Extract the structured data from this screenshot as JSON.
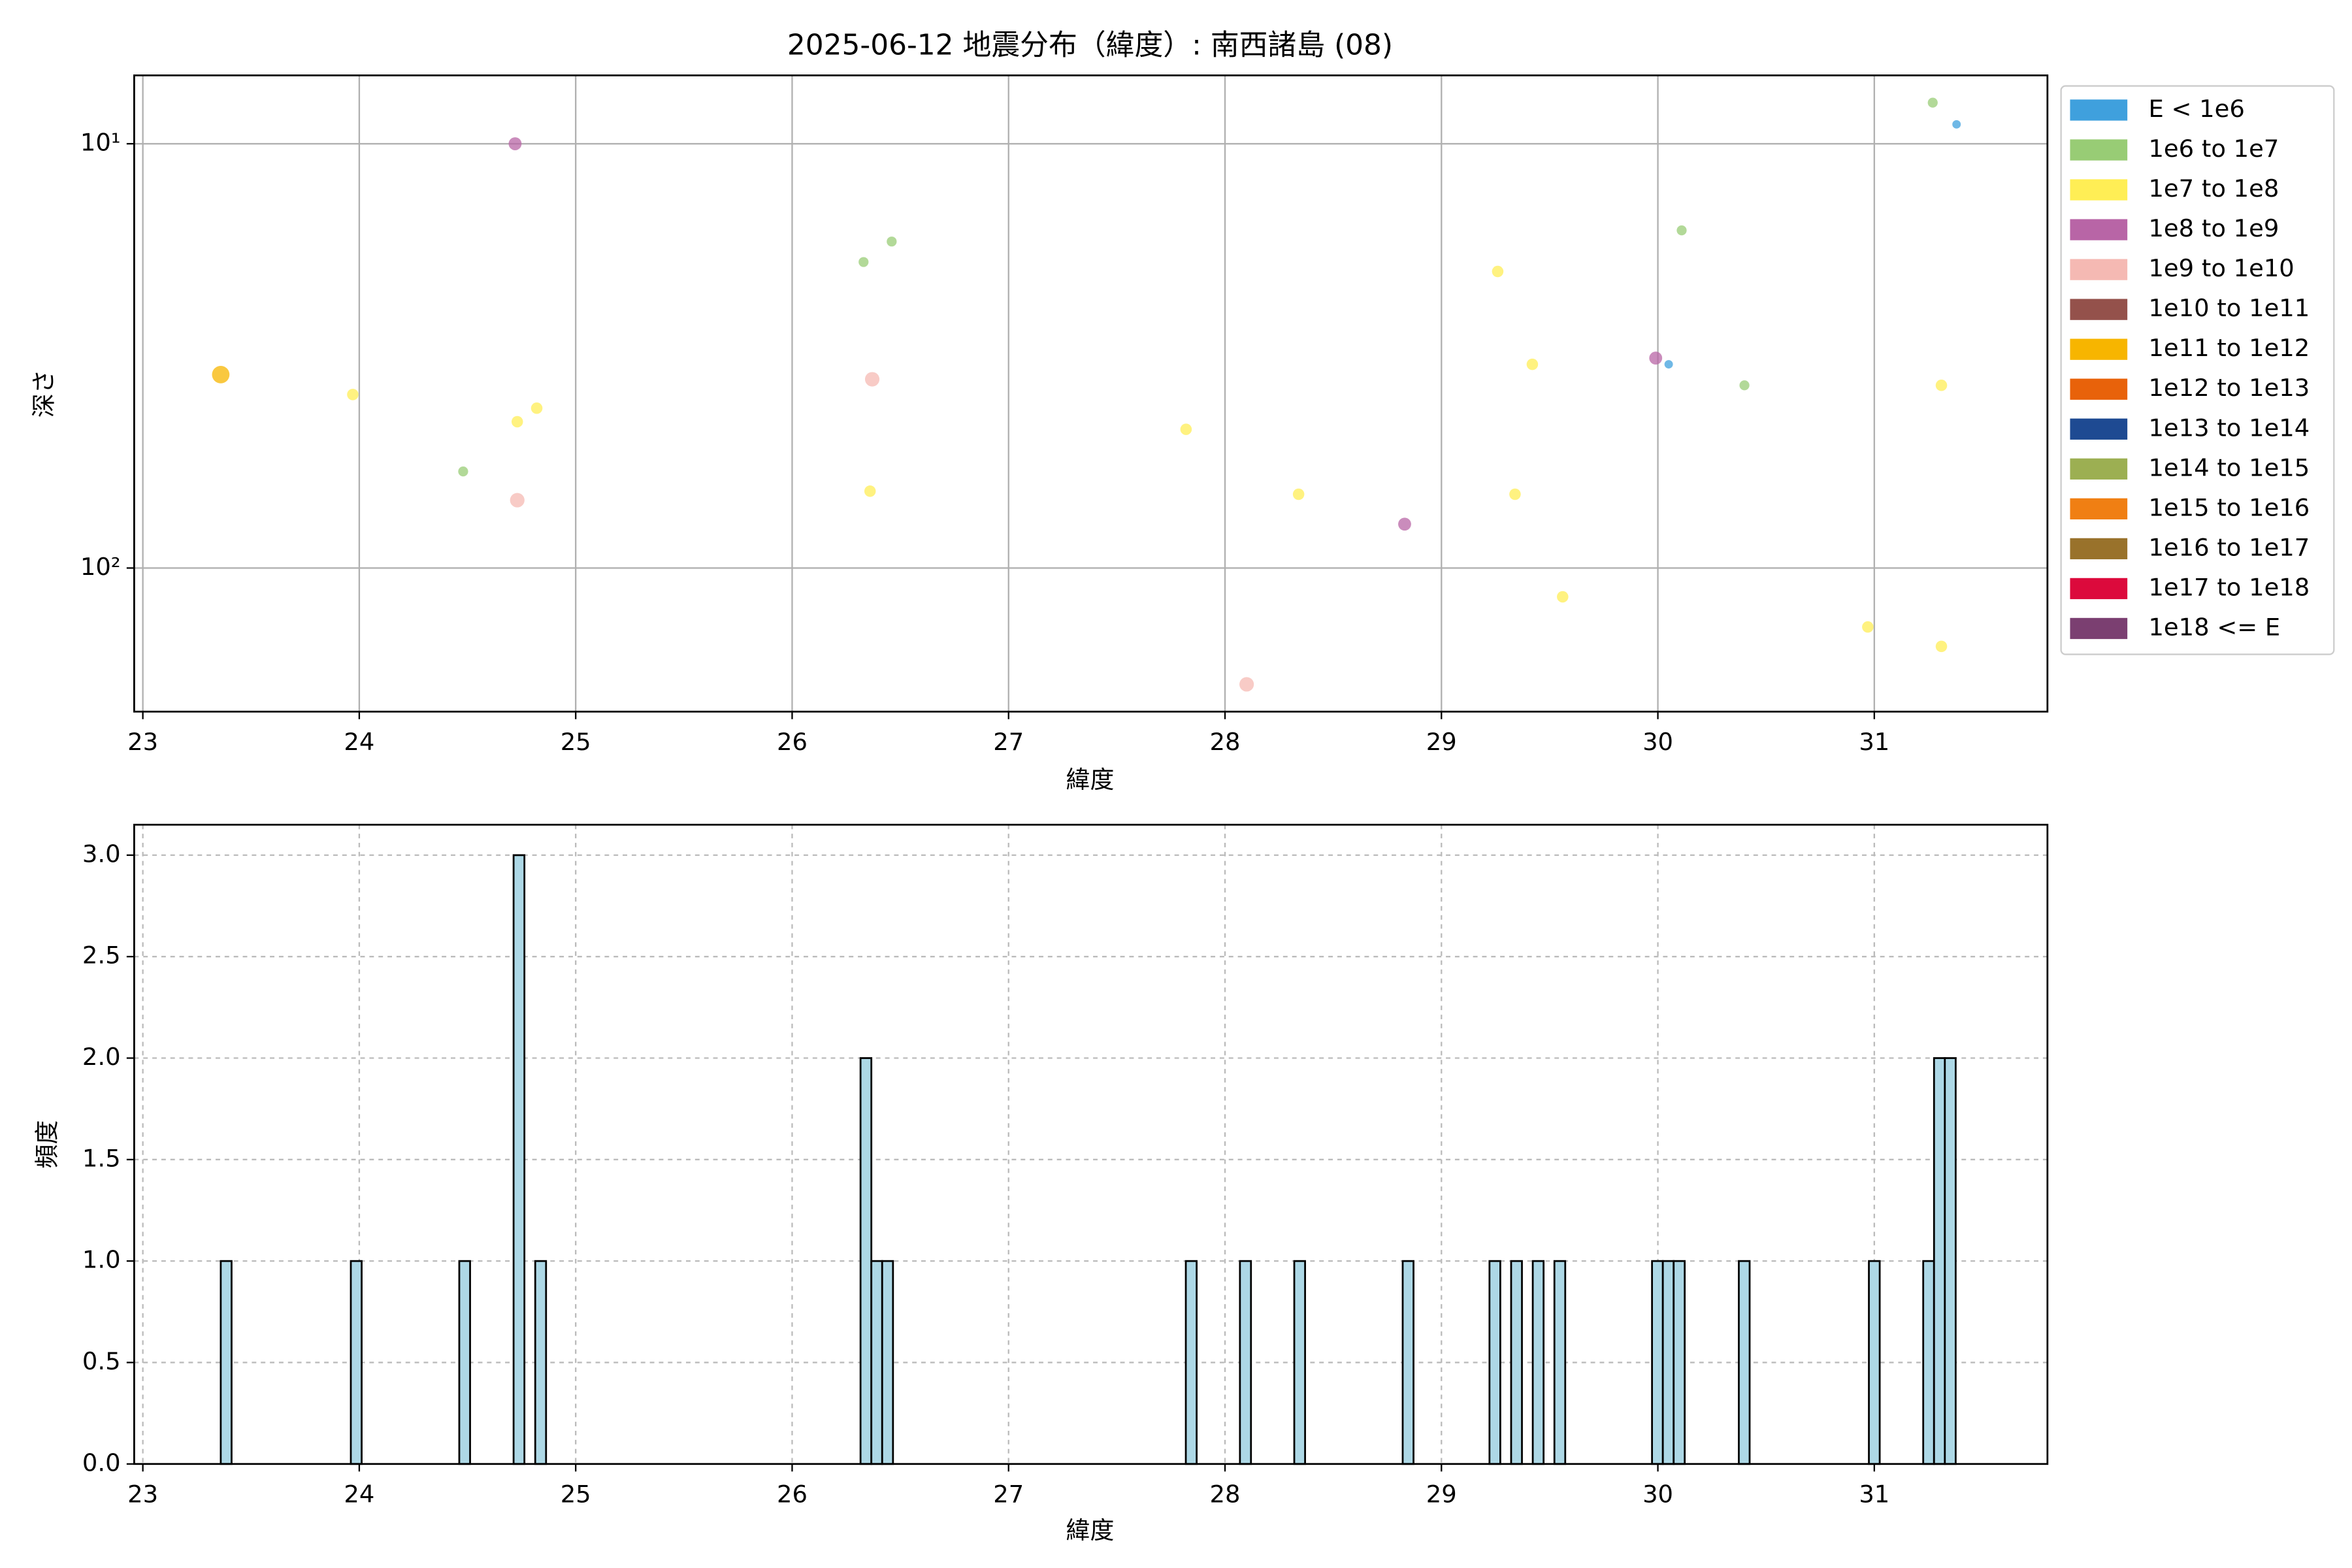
{
  "chart_data": [
    {
      "type": "scatter",
      "title": "2025-06-12 地震分布（緯度）: 南西諸島 (08)",
      "x_label": "緯度",
      "y_label": "深さ",
      "xlim": [
        22.96,
        31.8
      ],
      "xticks": [
        23,
        24,
        25,
        26,
        27,
        28,
        29,
        30,
        31
      ],
      "ylim": [
        6.9,
        218
      ],
      "y_log": true,
      "y_inverted": true,
      "yticks": [
        {
          "value": 10,
          "label": "10¹"
        },
        {
          "value": 100,
          "label": "10²"
        }
      ],
      "grid": true,
      "legend": "outside-right",
      "series": [
        {
          "name": "E < 1e6",
          "color": "#3fa0dd",
          "x": [
            31.38,
            30.05
          ],
          "values": [
            9.0,
            33.1
          ]
        },
        {
          "name": "1e6 to 1e7",
          "color": "#98cc75",
          "x": [
            31.27,
            26.33,
            26.46,
            30.11,
            30.4,
            24.48
          ],
          "values": [
            8.0,
            19.0,
            17.0,
            16.0,
            37.1,
            59.2
          ]
        },
        {
          "name": "1e7 to 1e8",
          "color": "#ffee55",
          "x": [
            23.97,
            24.73,
            24.82,
            26.36,
            27.82,
            28.34,
            29.26,
            29.42,
            29.34,
            29.56,
            30.97,
            31.31,
            31.31
          ],
          "values": [
            39.0,
            45.2,
            42.0,
            65.9,
            47.1,
            67.0,
            20.0,
            33.1,
            67.0,
            116.9,
            137.7,
            37.1,
            153
          ]
        },
        {
          "name": "1e8 to 1e9",
          "color": "#b865a6",
          "x": [
            24.72,
            28.83,
            29.99
          ],
          "values": [
            10.0,
            78.8,
            32.0
          ]
        },
        {
          "name": "1e9 to 1e10",
          "color": "#f5b9b3",
          "x": [
            26.37,
            24.73,
            28.1
          ],
          "values": [
            35.9,
            69.2,
            188
          ]
        },
        {
          "name": "1e10 to 1e11",
          "color": "#94514b",
          "x": [],
          "values": []
        },
        {
          "name": "1e11 to 1e12",
          "color": "#f7b500",
          "x": [
            23.36
          ],
          "values": [
            35.0
          ]
        },
        {
          "name": "1e12 to 1e13",
          "color": "#e8620a",
          "x": [],
          "values": []
        },
        {
          "name": "1e13 to 1e14",
          "color": "#1e4a92",
          "x": [],
          "values": []
        },
        {
          "name": "1e14 to 1e15",
          "color": "#9caf52",
          "x": [],
          "values": []
        },
        {
          "name": "1e15 to 1e16",
          "color": "#f07f13",
          "x": [],
          "values": []
        },
        {
          "name": "1e16 to 1e17",
          "color": "#99722b",
          "x": [],
          "values": []
        },
        {
          "name": "1e17 to 1e18",
          "color": "#dc0a3c",
          "x": [],
          "values": []
        },
        {
          "name": "1e18 <= E",
          "color": "#7b3f71",
          "x": [],
          "values": []
        }
      ]
    },
    {
      "type": "histogram",
      "x_label": "緯度",
      "y_label": "頻度",
      "color": "#add8e6",
      "edgecolor": "#000000",
      "xlim": [
        22.96,
        31.8
      ],
      "xticks": [
        23,
        24,
        25,
        26,
        27,
        28,
        29,
        30,
        31
      ],
      "ylim": [
        0,
        3.15
      ],
      "yticks": [
        {
          "value": 0,
          "label": "0.0"
        },
        {
          "value": 0.5,
          "label": "0.5"
        },
        {
          "value": 1,
          "label": "1.0"
        },
        {
          "value": 1.5,
          "label": "1.5"
        },
        {
          "value": 2,
          "label": "2.0"
        },
        {
          "value": 2.5,
          "label": "2.5"
        },
        {
          "value": 3,
          "label": "3.0"
        }
      ],
      "grid": true,
      "bins": [
        23.36,
        23.41,
        23.961,
        24.011,
        24.462,
        24.512,
        24.713,
        24.763,
        24.813,
        24.863,
        26.316,
        26.366,
        26.416,
        26.466,
        27.819,
        27.869,
        28.069,
        28.12,
        28.32,
        28.37,
        28.821,
        28.871,
        29.222,
        29.272,
        29.322,
        29.372,
        29.422,
        29.472,
        29.522,
        29.572,
        29.973,
        30.023,
        30.073,
        30.124,
        30.374,
        30.424,
        30.975,
        31.025,
        31.226,
        31.276,
        31.326,
        31.376
      ],
      "values": [
        1,
        0,
        1,
        0,
        1,
        0,
        3,
        0,
        1,
        0,
        2,
        1,
        1,
        0,
        1,
        0,
        1,
        0,
        1,
        0,
        1,
        0,
        1,
        0,
        1,
        0,
        1,
        0,
        1,
        0,
        1,
        1,
        1,
        0,
        1,
        0,
        1,
        0,
        1,
        2,
        2
      ]
    }
  ]
}
